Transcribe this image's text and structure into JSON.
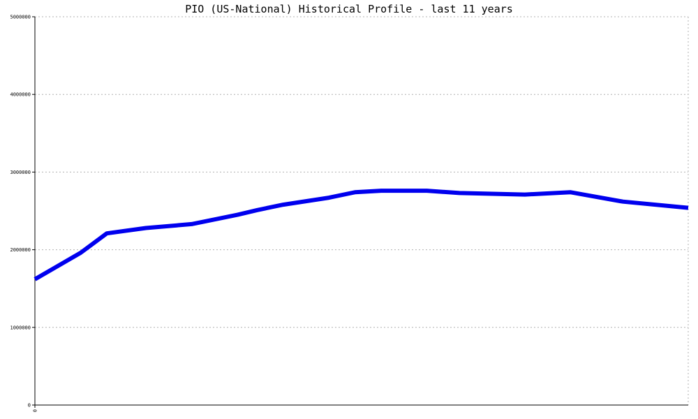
{
  "chart_data": {
    "type": "line",
    "title": "PIO (US-National) Historical Profile - last 11 years",
    "xlabel": "",
    "ylabel": "",
    "x_tick_labels": [
      "0"
    ],
    "y_ticks": [
      0,
      1000000,
      2000000,
      3000000,
      4000000,
      5000000
    ],
    "y_tick_labels": [
      "0",
      "1000000",
      "2000000",
      "3000000",
      "4000000",
      "5000000"
    ],
    "ylim": [
      0,
      5000000
    ],
    "grid": true,
    "legend": "none",
    "series": [
      {
        "color": "#0000ee",
        "x": [
          0,
          7,
          11,
          17,
          24,
          31,
          34,
          38,
          45,
          49,
          53,
          60,
          65,
          75,
          82,
          90,
          100
        ],
        "y": [
          1620000,
          1960000,
          2210000,
          2280000,
          2330000,
          2450000,
          2510000,
          2580000,
          2670000,
          2740000,
          2760000,
          2760000,
          2730000,
          2710000,
          2740000,
          2620000,
          2540000
        ]
      }
    ]
  }
}
